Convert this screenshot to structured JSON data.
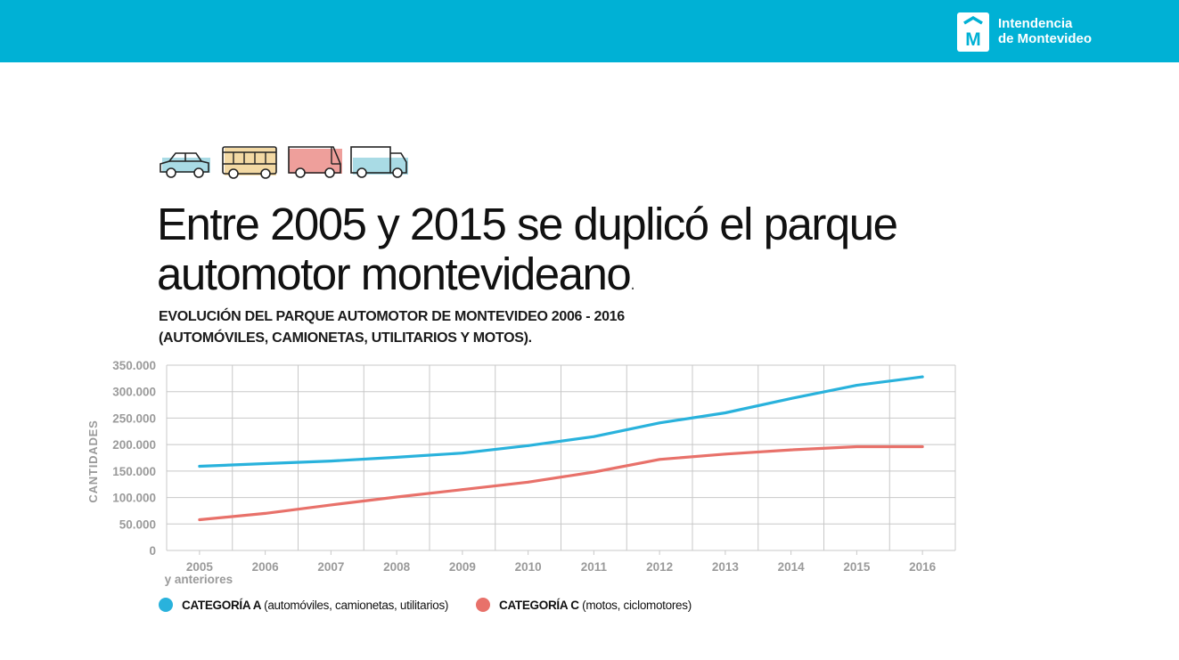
{
  "header": {
    "logo_line1": "Intendencia",
    "logo_line2": "de Montevideo",
    "logo_letter": "M",
    "bar_color": "#00b1d5"
  },
  "icons": [
    "car-icon",
    "bus-icon",
    "van-icon",
    "truck-icon"
  ],
  "headline": {
    "line1": "Entre 2005 y 2015 se duplicó el parque",
    "line2": "automotor montevideano",
    "trailing_dot": "."
  },
  "subtitle": {
    "line1": "EVOLUCIÓN DEL PARQUE AUTOMOTOR DE MONTEVIDEO 2006 - 2016",
    "line2": "(AUTOMÓVILES, CAMIONETAS, UTILITARIOS Y MOTOS)."
  },
  "chart_data": {
    "type": "line",
    "title": "",
    "xlabel": "",
    "ylabel": "CANTIDADES",
    "ylim": [
      0,
      350000
    ],
    "grid": true,
    "categories": [
      "2005",
      "2006",
      "2007",
      "2008",
      "2009",
      "2010",
      "2011",
      "2012",
      "2013",
      "2014",
      "2015",
      "2016"
    ],
    "first_category_note": "y anteriores",
    "y_ticks": [
      0,
      50000,
      100000,
      150000,
      200000,
      250000,
      300000,
      350000
    ],
    "y_tick_labels": [
      "0",
      "50.000",
      "100.000",
      "150.000",
      "200.000",
      "250.000",
      "300.000",
      "350.000"
    ],
    "series": [
      {
        "name": "CATEGORÍA A",
        "name_detail": "(automóviles, camionetas, utilitarios)",
        "color": "#29b2dc",
        "values": [
          159000,
          164000,
          169000,
          176000,
          184000,
          198000,
          215000,
          241000,
          260000,
          287000,
          312000,
          328000
        ]
      },
      {
        "name": "CATEGORÍA C",
        "name_detail": "(motos, ciclomotores)",
        "color": "#e8716a",
        "values": [
          58000,
          70000,
          86000,
          101000,
          115000,
          129000,
          148000,
          172000,
          182000,
          190000,
          196000,
          196000
        ]
      }
    ]
  }
}
